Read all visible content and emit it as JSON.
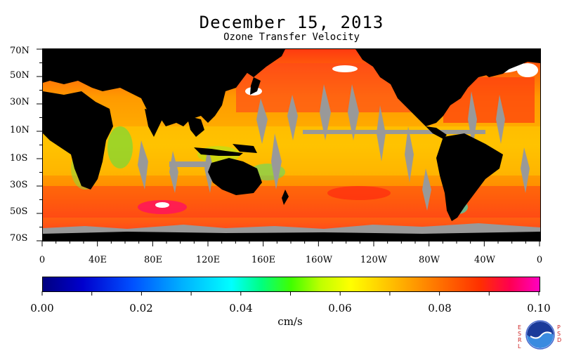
{
  "title": "December 15, 2013",
  "subtitle": "Ozone Transfer Velocity",
  "latitude_labels": [
    "70N",
    "50N",
    "30N",
    "10N",
    "10S",
    "30S",
    "50S",
    "70S"
  ],
  "longitude_labels": [
    "0",
    "40E",
    "80E",
    "120E",
    "160E",
    "160W",
    "120W",
    "80W",
    "40W",
    "0"
  ],
  "colorbar": {
    "tick_labels": [
      "0.00",
      "0.02",
      "0.04",
      "0.06",
      "0.08",
      "0.10"
    ],
    "units": "cm/s",
    "min": 0.0,
    "max": 0.1
  },
  "legend_colors": {
    "land": "#000000",
    "missing_data": "#999999",
    "sea_ice": "#ffffff"
  },
  "logo": {
    "left_letters": [
      "E",
      "S",
      "R",
      "L"
    ],
    "right_letters": [
      "P",
      "S",
      "D"
    ],
    "name": "NOAA"
  }
}
